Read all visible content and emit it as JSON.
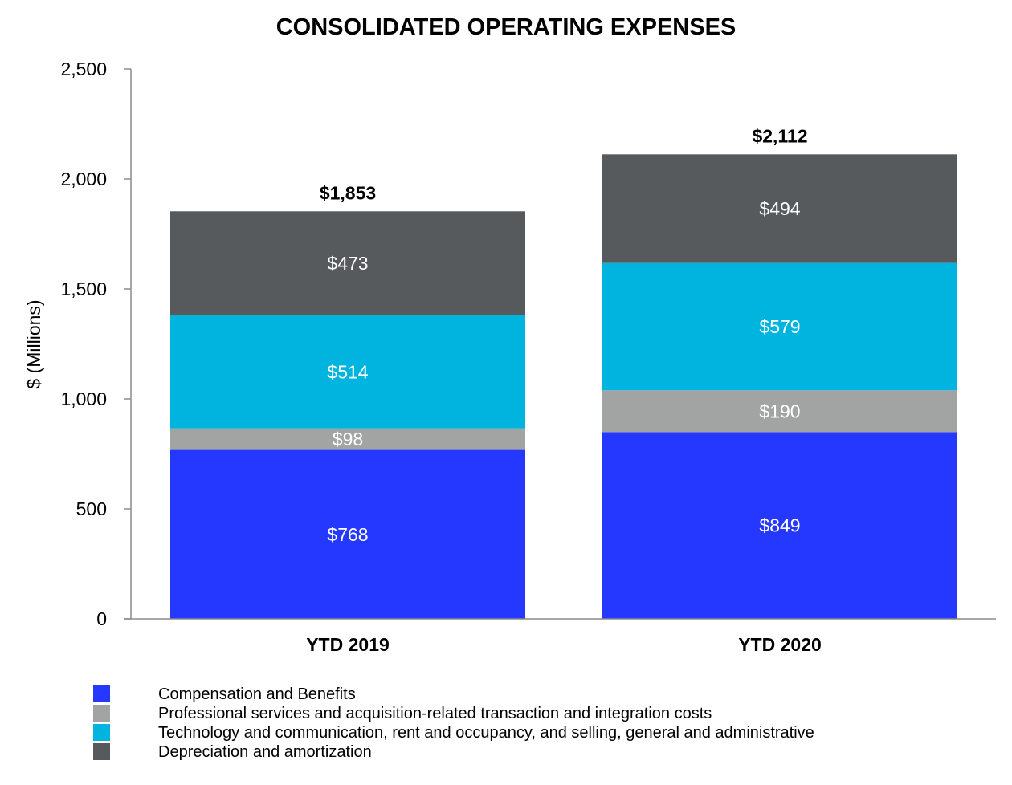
{
  "chart_data": {
    "type": "bar",
    "stacked": true,
    "title": "CONSOLIDATED OPERATING EXPENSES",
    "xlabel": "",
    "ylabel": "$ (Millions)",
    "ylim": [
      0,
      2500
    ],
    "yticks": [
      0,
      500,
      1000,
      1500,
      2000,
      2500
    ],
    "ytick_labels": [
      "0",
      "500",
      "1,000",
      "1,500",
      "2,000",
      "2,500"
    ],
    "grid": false,
    "legend_position": "bottom-left",
    "categories": [
      "YTD 2019",
      "YTD 2020"
    ],
    "series": [
      {
        "name": "Compensation and Benefits",
        "values": [
          768,
          849
        ],
        "labels": [
          "$768",
          "$849"
        ],
        "color": "#2538ff"
      },
      {
        "name": "Professional services and acquisition-related transaction and integration costs",
        "values": [
          98,
          190
        ],
        "labels": [
          "$98",
          "$190"
        ],
        "color": "#a2a3a3"
      },
      {
        "name": "Technology and communication, rent and occupancy, and selling, general and administrative",
        "values": [
          514,
          579
        ],
        "labels": [
          "$514",
          "$579"
        ],
        "color": "#00b4e0"
      },
      {
        "name": "Depreciation and amortization",
        "values": [
          473,
          494
        ],
        "labels": [
          "$473",
          "$494"
        ],
        "color": "#565a5c"
      }
    ],
    "totals": [
      1853,
      2112
    ],
    "total_labels": [
      "$1,853",
      "$2,112"
    ]
  },
  "colors": {
    "axis": "#8c8c8c",
    "text": "#000000",
    "segment_text": "#ffffff"
  }
}
